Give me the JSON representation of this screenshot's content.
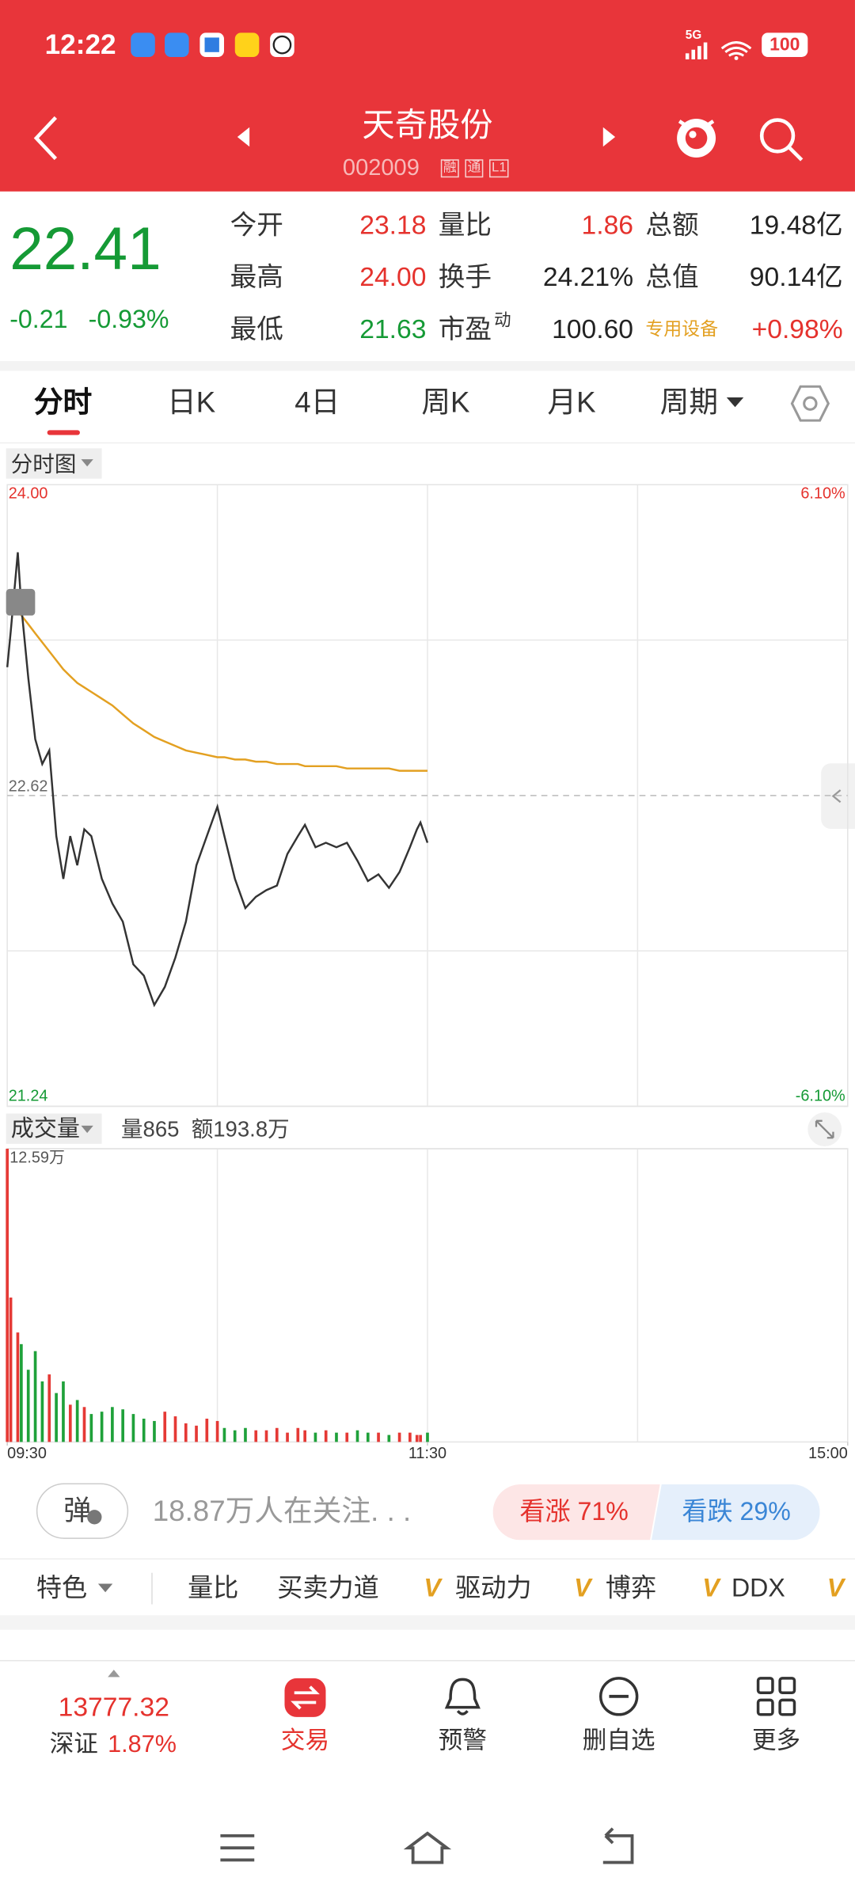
{
  "status_bar": {
    "time": "12:22",
    "network": "5G",
    "battery": "100"
  },
  "header": {
    "title": "天奇股份",
    "code": "002009",
    "tags": [
      "融",
      "通",
      "L1"
    ]
  },
  "quote": {
    "price": "22.41",
    "change": "-0.21",
    "change_pct": "-0.93%",
    "stats": [
      [
        "今开",
        "23.18",
        "量比",
        "1.86",
        "总额",
        "19.48亿"
      ],
      [
        "最高",
        "24.00",
        "换手",
        "24.21%",
        "总值",
        "90.14亿"
      ],
      [
        "最低",
        "21.63",
        "市盈",
        "100.60",
        "专用设备",
        "+0.98%"
      ]
    ],
    "pe_superscript": "动"
  },
  "tabs": [
    "分时",
    "日K",
    "4日",
    "周K",
    "月K",
    "周期"
  ],
  "chart_data": [
    {
      "type": "line",
      "title": "分时图",
      "x": [
        0,
        1,
        3,
        4,
        6,
        8,
        10,
        12,
        14,
        16,
        18,
        20,
        22,
        24,
        27,
        30,
        33,
        36,
        39,
        42,
        45,
        48,
        51,
        54,
        57,
        60,
        62,
        65,
        68,
        71,
        74,
        77,
        80,
        83,
        85,
        88,
        91,
        94,
        97,
        100,
        103,
        106,
        109,
        112,
        115,
        117,
        118,
        120
      ],
      "xlim": [
        0,
        240
      ],
      "ylim": [
        21.24,
        24
      ],
      "yticks": [
        {
          "value": 24,
          "label": "24.00"
        },
        22.62,
        21.24
      ],
      "y2lim": [
        -6.1,
        6.1
      ],
      "y2ticks": [
        {
          "value": 6.1,
          "label": "6.10%"
        },
        {
          "value": -6.1,
          "label": "-6.10%"
        }
      ],
      "series": [
        {
          "color": "#333333",
          "values": [
            23.19,
            23.35,
            23.7,
            23.46,
            23.14,
            22.87,
            22.76,
            22.82,
            22.44,
            22.25,
            22.44,
            22.31,
            22.47,
            22.44,
            22.25,
            22.14,
            22.06,
            21.87,
            21.82,
            21.69,
            21.77,
            21.9,
            22.06,
            22.31,
            22.44,
            22.57,
            22.44,
            22.25,
            22.12,
            22.17,
            22.2,
            22.22,
            22.36,
            22.44,
            22.49,
            22.39,
            22.41,
            22.39,
            22.41,
            22.33,
            22.24,
            22.27,
            22.21,
            22.28,
            22.39,
            22.47,
            22.5,
            22.41
          ]
        },
        {
          "color": "#e3a021",
          "values": [
            23.5,
            23.48,
            23.45,
            23.42,
            23.38,
            23.34,
            23.3,
            23.26,
            23.22,
            23.18,
            23.15,
            23.12,
            23.1,
            23.08,
            23.05,
            23.02,
            22.98,
            22.94,
            22.91,
            22.88,
            22.86,
            22.84,
            22.82,
            22.81,
            22.8,
            22.79,
            22.79,
            22.78,
            22.78,
            22.77,
            22.77,
            22.76,
            22.76,
            22.76,
            22.75,
            22.75,
            22.75,
            22.75,
            22.74,
            22.74,
            22.74,
            22.74,
            22.74,
            22.73,
            22.73,
            22.73,
            22.73,
            22.73
          ]
        }
      ]
    },
    {
      "type": "bar",
      "title": "成交量",
      "annotations": [
        "量865",
        "额193.8万"
      ],
      "x": [
        0,
        1,
        3,
        4,
        6,
        8,
        10,
        12,
        14,
        16,
        18,
        20,
        22,
        24,
        27,
        30,
        33,
        36,
        39,
        42,
        45,
        48,
        51,
        54,
        57,
        60,
        62,
        65,
        68,
        71,
        74,
        77,
        80,
        83,
        85,
        88,
        91,
        94,
        97,
        100,
        103,
        106,
        109,
        112,
        115,
        117,
        118,
        120
      ],
      "values": [
        12.59,
        6.2,
        4.7,
        4.2,
        3.1,
        3.9,
        2.6,
        2.9,
        2.1,
        2.6,
        1.6,
        1.8,
        1.5,
        1.2,
        1.3,
        1.5,
        1.4,
        1.2,
        1.0,
        0.9,
        1.3,
        1.1,
        0.8,
        0.7,
        1.0,
        0.9,
        0.6,
        0.5,
        0.6,
        0.5,
        0.5,
        0.6,
        0.4,
        0.6,
        0.5,
        0.4,
        0.5,
        0.4,
        0.4,
        0.5,
        0.4,
        0.4,
        0.3,
        0.4,
        0.4,
        0.3,
        0.3,
        0.4
      ],
      "colors": [
        "#e53935",
        "#e53935",
        "#e53935",
        "#1fa13a",
        "#1fa13a",
        "#1fa13a",
        "#1fa13a",
        "#e53935",
        "#1fa13a",
        "#1fa13a",
        "#e53935",
        "#1fa13a",
        "#e53935",
        "#1fa13a",
        "#1fa13a",
        "#1fa13a",
        "#1fa13a",
        "#1fa13a",
        "#1fa13a",
        "#1fa13a",
        "#e53935",
        "#e53935",
        "#e53935",
        "#e53935",
        "#e53935",
        "#e53935",
        "#1fa13a",
        "#1fa13a",
        "#1fa13a",
        "#e53935",
        "#e53935",
        "#e53935",
        "#e53935",
        "#e53935",
        "#e53935",
        "#1fa13a",
        "#e53935",
        "#1fa13a",
        "#e53935",
        "#1fa13a",
        "#1fa13a",
        "#e53935",
        "#1fa13a",
        "#e53935",
        "#e53935",
        "#e53935",
        "#e53935",
        "#1fa13a"
      ],
      "xlim": [
        0,
        240
      ],
      "xticks": [
        {
          "value": 0,
          "label": "09:30"
        },
        {
          "value": 120,
          "label": "11:30"
        },
        {
          "value": 240,
          "label": "15:00"
        }
      ],
      "ylim": [
        0,
        12.59
      ],
      "yticks": [
        {
          "value": 12.59,
          "label": "12.59万"
        }
      ]
    }
  ],
  "sentiment": {
    "button": "弹",
    "followers": "18.87万人在关注. . .",
    "bullish": "看涨 71%",
    "bearish": "看跌 29%"
  },
  "indicators": [
    "特色",
    "量比",
    "买卖力道",
    "驱动力",
    "博弈",
    "DDX"
  ],
  "vip_mark": "V",
  "bottom_nav": {
    "index_value": "13777.32",
    "index_name": "深证",
    "index_change": "1.87%",
    "items": [
      "交易",
      "预警",
      "删自选",
      "更多"
    ]
  }
}
